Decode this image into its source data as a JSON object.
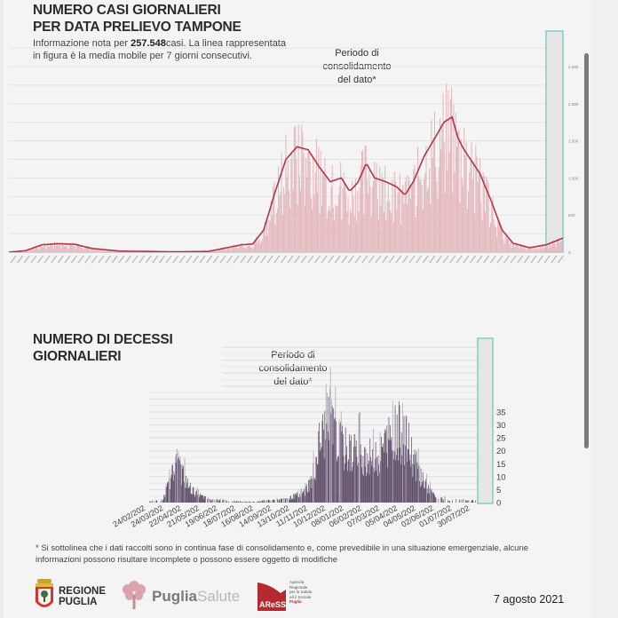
{
  "cases_section": {
    "title_line1": "NUMERO CASI GIORNALIERI",
    "title_line2": "PER DATA PRELIEVO TAMPONE",
    "subtitle_prefix": "Informazione nota per ",
    "total_cases": "257.548",
    "subtitle_suffix": "casi. La linea rappresentata in figura è la media mobile per 7 giorni consecutivi.",
    "annotation_line1": "Periodo di",
    "annotation_line2": "consolidamento",
    "annotation_line3": "del dato*"
  },
  "deaths_section": {
    "title_line1": "NUMERO DI DECESSI",
    "title_line2": "GIORNALIERI",
    "annotation_line1": "Periodo di",
    "annotation_line2": "consolidamento",
    "annotation_line3": "del dato*"
  },
  "footer": {
    "footnote": "* Si sottolinea che i dati raccolti sono in continua fase di consolidamento e, come prevedibile in una situazione emergenziale, alcune informazioni possono risultare incomplete o possono essere oggetto di modifiche",
    "logo_regione_line1": "REGIONE",
    "logo_regione_line2": "PUGLIA",
    "logo_puglia": "Puglia",
    "logo_salute": "Salute",
    "logo_aress": "AReSS",
    "logo_aress_desc": [
      "Agenzia",
      "Regionale",
      "per la Salute",
      "ed il Sociale",
      "Puglia"
    ],
    "date": "7 agosto 2021"
  },
  "colors": {
    "cases_bar": "#e4b6bb",
    "cases_line": "#b5344a",
    "deaths_bar": "#5b4a66",
    "deaths_bar_light": "#a99db0",
    "consolidation_box": "#7fcfc0",
    "accent_red": "#b42a2f"
  },
  "chart_data": [
    {
      "type": "bar",
      "title": "NUMERO CASI GIORNALIERI PER DATA PRELIEVO TAMPONE",
      "overlay": "7-day moving average line",
      "ylabel": "",
      "y_ticks": [
        "0",
        "500",
        "1.000",
        "1.500",
        "2.000",
        "2.500"
      ],
      "ylim": [
        0,
        2600
      ],
      "y_axis_side": "right",
      "grid": true,
      "x_range": [
        "2020-02",
        "2021-08"
      ],
      "consolidation_period_highlight": "last ~2 weeks",
      "moving_average_keypoints": [
        {
          "t": 0.0,
          "v": 0
        },
        {
          "t": 0.03,
          "v": 20
        },
        {
          "t": 0.06,
          "v": 100
        },
        {
          "t": 0.09,
          "v": 115
        },
        {
          "t": 0.12,
          "v": 105
        },
        {
          "t": 0.15,
          "v": 50
        },
        {
          "t": 0.2,
          "v": 15
        },
        {
          "t": 0.3,
          "v": 5
        },
        {
          "t": 0.36,
          "v": 10
        },
        {
          "t": 0.4,
          "v": 70
        },
        {
          "t": 0.42,
          "v": 100
        },
        {
          "t": 0.44,
          "v": 110
        },
        {
          "t": 0.46,
          "v": 300
        },
        {
          "t": 0.48,
          "v": 800
        },
        {
          "t": 0.5,
          "v": 1250
        },
        {
          "t": 0.52,
          "v": 1420
        },
        {
          "t": 0.54,
          "v": 1380
        },
        {
          "t": 0.56,
          "v": 1150
        },
        {
          "t": 0.58,
          "v": 950
        },
        {
          "t": 0.6,
          "v": 1000
        },
        {
          "t": 0.615,
          "v": 820
        },
        {
          "t": 0.63,
          "v": 940
        },
        {
          "t": 0.645,
          "v": 1200
        },
        {
          "t": 0.66,
          "v": 1000
        },
        {
          "t": 0.68,
          "v": 950
        },
        {
          "t": 0.7,
          "v": 880
        },
        {
          "t": 0.715,
          "v": 770
        },
        {
          "t": 0.73,
          "v": 950
        },
        {
          "t": 0.75,
          "v": 1300
        },
        {
          "t": 0.77,
          "v": 1550
        },
        {
          "t": 0.785,
          "v": 1750
        },
        {
          "t": 0.8,
          "v": 1820
        },
        {
          "t": 0.81,
          "v": 1550
        },
        {
          "t": 0.82,
          "v": 1400
        },
        {
          "t": 0.835,
          "v": 1230
        },
        {
          "t": 0.85,
          "v": 1060
        },
        {
          "t": 0.87,
          "v": 700
        },
        {
          "t": 0.89,
          "v": 300
        },
        {
          "t": 0.91,
          "v": 120
        },
        {
          "t": 0.94,
          "v": 60
        },
        {
          "t": 0.97,
          "v": 100
        },
        {
          "t": 1.0,
          "v": 190
        }
      ]
    },
    {
      "type": "bar",
      "title": "NUMERO DI DECESSI GIORNALIERI",
      "ylabel": "",
      "y_ticks": [
        "0",
        "5",
        "10",
        "15",
        "20",
        "25",
        "30",
        "35"
      ],
      "ylim": [
        0,
        40
      ],
      "y_axis_side": "right",
      "grid": true,
      "x_tick_labels": [
        "24/02/202",
        "24/03/202",
        "22/04/202",
        "21/05/202",
        "19/06/202",
        "18/07/202",
        "16/08/202",
        "14/09/202",
        "13/10/202",
        "11/11/202",
        "10/12/202",
        "08/01/202",
        "06/02/202",
        "07/03/202",
        "05/04/202",
        "04/05/202",
        "02/06/202",
        "01/07/202",
        "30/07/202"
      ],
      "consolidation_period_highlight": "last ~2 weeks",
      "envelope_keypoints": [
        {
          "t": 0.0,
          "v": 0.5
        },
        {
          "t": 0.04,
          "v": 1
        },
        {
          "t": 0.06,
          "v": 8
        },
        {
          "t": 0.08,
          "v": 15
        },
        {
          "t": 0.1,
          "v": 13
        },
        {
          "t": 0.12,
          "v": 7
        },
        {
          "t": 0.14,
          "v": 4
        },
        {
          "t": 0.17,
          "v": 2
        },
        {
          "t": 0.22,
          "v": 1
        },
        {
          "t": 0.3,
          "v": 0.3
        },
        {
          "t": 0.37,
          "v": 1
        },
        {
          "t": 0.43,
          "v": 2
        },
        {
          "t": 0.47,
          "v": 4
        },
        {
          "t": 0.5,
          "v": 10
        },
        {
          "t": 0.52,
          "v": 25
        },
        {
          "t": 0.55,
          "v": 34
        },
        {
          "t": 0.58,
          "v": 26
        },
        {
          "t": 0.61,
          "v": 21
        },
        {
          "t": 0.64,
          "v": 22
        },
        {
          "t": 0.67,
          "v": 19
        },
        {
          "t": 0.7,
          "v": 20
        },
        {
          "t": 0.73,
          "v": 26
        },
        {
          "t": 0.76,
          "v": 31
        },
        {
          "t": 0.79,
          "v": 26
        },
        {
          "t": 0.82,
          "v": 15
        },
        {
          "t": 0.85,
          "v": 7
        },
        {
          "t": 0.88,
          "v": 2
        },
        {
          "t": 0.93,
          "v": 1
        },
        {
          "t": 1.0,
          "v": 0.8
        }
      ]
    }
  ]
}
